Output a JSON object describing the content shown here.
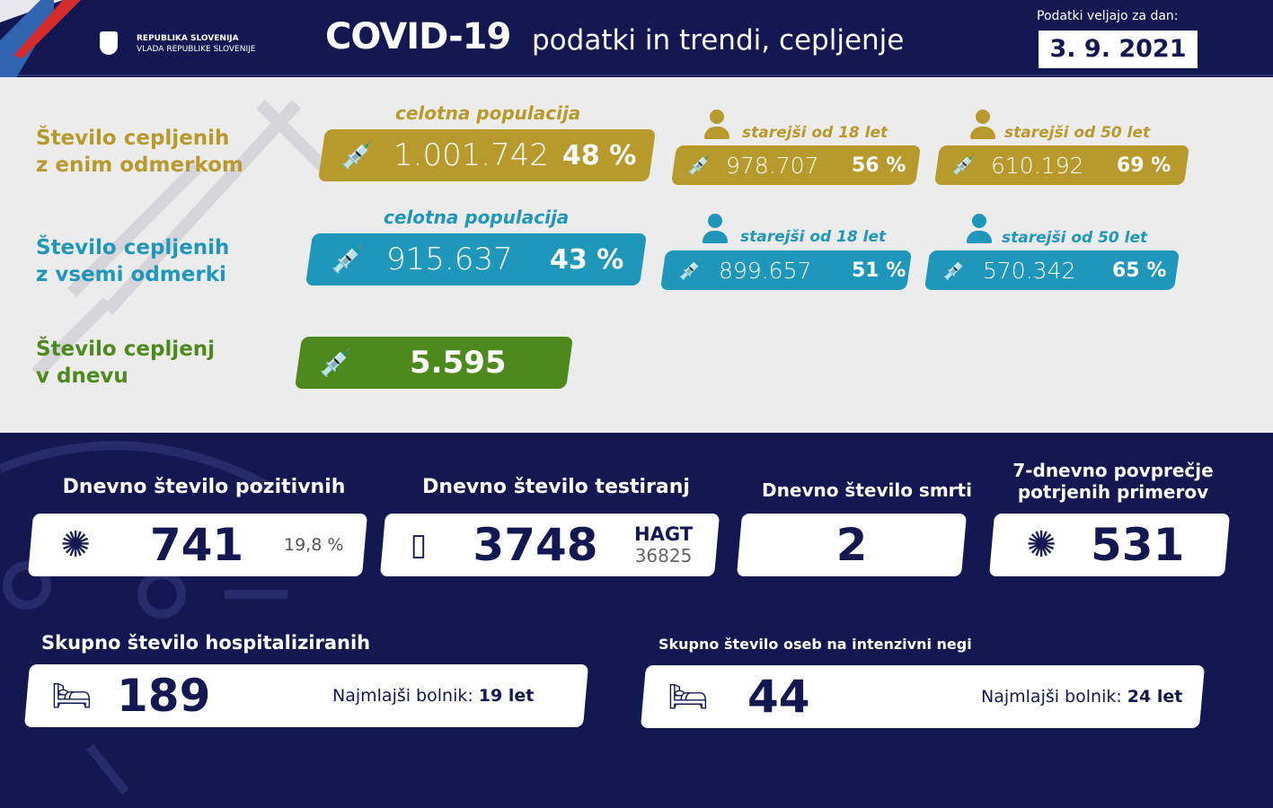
{
  "header": {
    "gov_line1": "REPUBLIKA SLOVENIJA",
    "gov_line2": "VLADA REPUBLIKE SLOVENIJE",
    "title": "COVID-19",
    "subtitle": "podatki in trendi, cepljenje",
    "date_label": "Podatki veljajo za dan:",
    "date": "3. 9. 2021"
  },
  "colors": {
    "navy": "#131852",
    "gold": "#b89a2c",
    "teal": "#1f97bb",
    "green": "#4e891e"
  },
  "one_dose": {
    "label1": "Število cepljenih",
    "label2": "z enim odmerkom",
    "total": {
      "caption": "celotna populacija",
      "value": "1.001.742",
      "pct": "48 %"
    },
    "over18": {
      "caption": "starejši od 18 let",
      "value": "978.707",
      "pct": "56 %"
    },
    "over50": {
      "caption": "starejši od 50 let",
      "value": "610.192",
      "pct": "69 %"
    }
  },
  "all_doses": {
    "label1": "Število cepljenih",
    "label2": "z vsemi odmerki",
    "total": {
      "caption": "celotna populacija",
      "value": "915.637",
      "pct": "43 %"
    },
    "over18": {
      "caption": "starejši od 18 let",
      "value": "899.657",
      "pct": "51 %"
    },
    "over50": {
      "caption": "starejši od 50 let",
      "value": "570.342",
      "pct": "65 %"
    }
  },
  "daily_vacc": {
    "label1": "Število cepljenj",
    "label2": "v dnevu",
    "value": "5.595"
  },
  "stats": {
    "positive": {
      "title": "Dnevno število pozitivnih",
      "value": "741",
      "pct": "19,8 %"
    },
    "tests": {
      "title": "Dnevno število testiranj",
      "value": "3748",
      "hagt_label": "HAGT",
      "hagt_value": "36825"
    },
    "deaths": {
      "title": "Dnevno število smrti",
      "value": "2"
    },
    "avg7": {
      "title1": "7-dnevno povprečje",
      "title2": "potrjenih primerov",
      "value": "531"
    },
    "hosp": {
      "title": "Skupno število hospitaliziranih",
      "value": "189",
      "youngest_label": "Najmlajši bolnik:",
      "youngest_value": "19 let"
    },
    "icu": {
      "title": "Skupno število oseb na intenzivni negi",
      "value": "44",
      "youngest_label": "Najmlajši bolnik:",
      "youngest_value": "24 let"
    }
  }
}
